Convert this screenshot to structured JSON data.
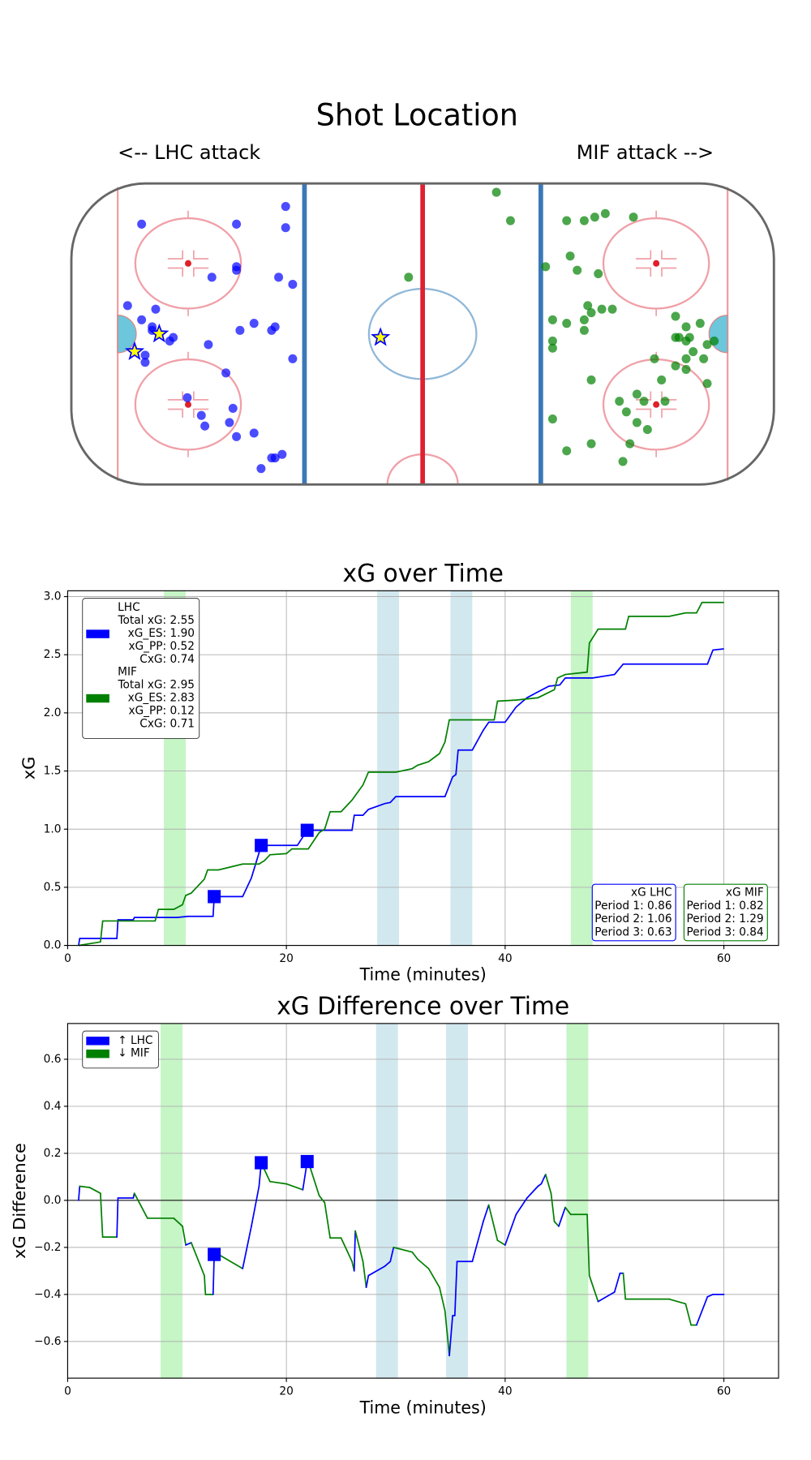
{
  "chart_data": [
    {
      "type": "scatter",
      "title": "Shot Location",
      "annotations": [
        "<-- LHC attack",
        "MIF attack -->"
      ],
      "xlim": [
        -100,
        100
      ],
      "ylim": [
        -42.5,
        42.5
      ],
      "series": [
        {
          "color": "#0000ff",
          "marker": "o",
          "x": [
            -80,
            -53,
            -39,
            -39,
            -53,
            -53,
            -60,
            -41,
            -37,
            -84,
            -76,
            -80,
            -77,
            -77,
            -71,
            -72,
            -61,
            -52,
            -48,
            -43,
            -42,
            -37,
            -79,
            -79,
            -56,
            -67,
            -63,
            -54,
            -62,
            -55,
            -48,
            -53,
            -46,
            -43,
            -42,
            -40
          ],
          "y": [
            31,
            31,
            36,
            30,
            19,
            18,
            16,
            16,
            14,
            8,
            7,
            4,
            2,
            1,
            -1,
            -2,
            -3,
            1,
            3,
            1,
            2,
            -7,
            -6,
            -8,
            -11,
            -18,
            -23,
            -21,
            -26,
            -25,
            -28,
            -29,
            -38,
            -35,
            -35,
            -34
          ]
        },
        {
          "color": "#ffff00",
          "edgecolor": "#0000ff",
          "marker": "*",
          "x": [
            -82,
            -75,
            -12
          ],
          "y": [
            -5,
            0,
            -1
          ]
        },
        {
          "color": "#008000",
          "marker": "o",
          "x": [
            21,
            25,
            -4,
            41,
            46,
            49,
            52,
            60,
            42,
            44,
            50,
            35,
            37,
            41,
            47,
            48,
            51,
            54,
            46,
            46,
            37,
            37,
            72,
            75,
            79,
            73,
            76,
            72,
            75,
            77,
            83,
            81,
            80,
            66,
            75,
            72,
            75,
            81,
            48,
            68,
            61,
            56,
            63,
            69,
            58,
            61,
            64,
            37,
            48,
            41,
            59,
            57
          ],
          "y": [
            40,
            32,
            16,
            32,
            32,
            33,
            34,
            33,
            22,
            18,
            17,
            19,
            4,
            3,
            8,
            6,
            7,
            7,
            4,
            1,
            -2,
            -4,
            5,
            2,
            3,
            -1,
            -1,
            -1,
            -2,
            -5,
            -2,
            -3,
            -7,
            -7,
            -7,
            -9,
            -10,
            -14,
            -13,
            -13,
            -17,
            -19,
            -19,
            -19,
            -22,
            -25,
            -27,
            -24,
            -31,
            -33,
            -31,
            -36
          ]
        }
      ]
    },
    {
      "type": "line",
      "title": "xG over Time",
      "xlabel": "Time (minutes)",
      "ylabel": "xG",
      "xlim": [
        0,
        65
      ],
      "ylim": [
        0,
        3.05
      ],
      "xticks": [
        0,
        20,
        40,
        60
      ],
      "yticks": [
        {
          "value": 0,
          "label": "0.0"
        },
        {
          "value": 0.5,
          "label": "0.5"
        },
        {
          "value": 1,
          "label": "1.0"
        },
        {
          "value": 1.5,
          "label": "1.5"
        },
        {
          "value": 2,
          "label": "2.0"
        },
        {
          "value": 2.5,
          "label": "2.5"
        },
        {
          "value": 3,
          "label": "3.0"
        }
      ],
      "grid": true,
      "legend": "upper left",
      "box_corner": "lower right",
      "spans": [
        {
          "x": [
            8.8,
            10.8
          ],
          "color": "#c6f5c6"
        },
        {
          "x": [
            28.3,
            30.3
          ],
          "color": "#d2e8ef"
        },
        {
          "x": [
            35,
            37
          ],
          "color": "#d2e8ef"
        },
        {
          "x": [
            46,
            48
          ],
          "color": "#c6f5c6"
        }
      ],
      "series": [
        {
          "name": "LHC",
          "color": "#0000ff",
          "legend_lines": [
            "Total xG: 2.55",
            "xG_ES: 1.90",
            "xG_PP: 0.52",
            "CxG: 0.74"
          ],
          "x": [
            1,
            1.1,
            4.5,
            4.6,
            6,
            6.1,
            10,
            11,
            13.3,
            13.4,
            16,
            16.8,
            17.7,
            21,
            21.9,
            26,
            26.2,
            27,
            27.5,
            29,
            29.5,
            30,
            34.5,
            35.2,
            35.5,
            35.7,
            37,
            38,
            38.5,
            40,
            41,
            42,
            43,
            44,
            45,
            45.5,
            48,
            50,
            50.8,
            58.5,
            59,
            60
          ],
          "values": [
            0,
            0.06,
            0.06,
            0.22,
            0.22,
            0.24,
            0.24,
            0.25,
            0.25,
            0.42,
            0.42,
            0.58,
            0.86,
            0.86,
            0.99,
            0.99,
            1.12,
            1.12,
            1.17,
            1.22,
            1.23,
            1.28,
            1.28,
            1.45,
            1.47,
            1.68,
            1.68,
            1.85,
            1.92,
            1.92,
            2.05,
            2.13,
            2.18,
            2.23,
            2.24,
            2.3,
            2.3,
            2.33,
            2.42,
            2.42,
            2.54,
            2.55
          ],
          "goals": {
            "x": [
              13.4,
              17.7,
              21.9
            ],
            "values": [
              0.42,
              0.86,
              0.99
            ]
          }
        },
        {
          "name": "MIF",
          "color": "#008000",
          "legend_lines": [
            "Total xG: 2.95",
            "xG_ES: 2.83",
            "xG_PP: 0.12",
            "CxG: 0.71"
          ],
          "x": [
            1,
            3,
            3.2,
            8,
            8.3,
            9.7,
            10.5,
            10.8,
            11.3,
            12.5,
            12.8,
            13.8,
            16,
            17.5,
            18,
            18.5,
            20,
            20.5,
            22,
            23,
            23.5,
            24,
            25,
            26,
            27,
            27.5,
            30,
            31.5,
            32,
            33,
            34,
            34.5,
            34.9,
            39,
            39.3,
            41,
            43,
            44.5,
            44.8,
            45.5,
            47.5,
            47.7,
            48.5,
            51,
            51.3,
            55,
            56.5,
            57.5,
            58,
            60
          ],
          "values": [
            0,
            0.03,
            0.21,
            0.21,
            0.31,
            0.31,
            0.35,
            0.43,
            0.45,
            0.57,
            0.65,
            0.65,
            0.7,
            0.7,
            0.73,
            0.78,
            0.79,
            0.83,
            0.83,
            0.97,
            1.0,
            1.15,
            1.15,
            1.25,
            1.38,
            1.49,
            1.49,
            1.52,
            1.55,
            1.58,
            1.65,
            1.75,
            1.94,
            1.94,
            2.1,
            2.11,
            2.13,
            2.2,
            2.3,
            2.33,
            2.35,
            2.6,
            2.72,
            2.72,
            2.83,
            2.83,
            2.86,
            2.86,
            2.95,
            2.95
          ]
        }
      ],
      "boxes": [
        {
          "color": "#0000ff",
          "lines": [
            "xG LHC",
            "Period 1: 0.86",
            "Period 2: 1.06",
            "Period 3: 0.63"
          ]
        },
        {
          "color": "#008000",
          "lines": [
            "xG MIF",
            "Period 1: 0.82",
            "Period 2: 1.29",
            "Period 3: 0.84"
          ]
        }
      ]
    },
    {
      "type": "line",
      "title": "xG Difference over Time",
      "xlabel": "Time (minutes)",
      "ylabel": "xG Difference",
      "xlim": [
        0,
        65
      ],
      "ylim": [
        -0.756,
        0.752
      ],
      "xticks": [
        0,
        20,
        40,
        60
      ],
      "yticks": [
        {
          "value": -0.6,
          "label": "−0.6"
        },
        {
          "value": -0.4,
          "label": "−0.4"
        },
        {
          "value": -0.2,
          "label": "−0.2"
        },
        {
          "value": 0,
          "label": "0.0"
        },
        {
          "value": 0.2,
          "label": "0.2"
        },
        {
          "value": 0.4,
          "label": "0.4"
        },
        {
          "value": 0.6,
          "label": "0.6"
        }
      ],
      "grid": true,
      "legend": "upper left",
      "hline": 0,
      "spans": [
        {
          "x": [
            8.5,
            10.5
          ],
          "color": "#c6f5c6"
        },
        {
          "x": [
            28.2,
            30.2
          ],
          "color": "#d2e8ef"
        },
        {
          "x": [
            34.6,
            36.6
          ],
          "color": "#d2e8ef"
        },
        {
          "x": [
            45.6,
            47.6
          ],
          "color": "#c6f5c6"
        }
      ],
      "series": [
        {
          "name": "↑ LHC",
          "color": "#0000ff"
        },
        {
          "name": "↓ MIF",
          "color": "#008000"
        }
      ],
      "x": [
        1,
        1.1,
        2,
        3,
        3.2,
        4.5,
        4.6,
        6,
        6.1,
        7.3,
        9.7,
        10.5,
        10.8,
        11.3,
        12.5,
        12.6,
        13.3,
        13.4,
        13.8,
        16,
        16.8,
        17.5,
        17.7,
        18,
        18.5,
        20,
        21.5,
        21.9,
        22,
        23,
        23.5,
        24,
        25,
        26,
        26.2,
        26.3,
        27,
        27.3,
        27.5,
        29,
        29.5,
        29.8,
        31.5,
        32,
        33,
        34,
        34.5,
        34.9,
        35.2,
        35.4,
        35.6,
        37,
        38,
        38.5,
        39.3,
        40,
        41,
        42,
        43,
        43.3,
        43.7,
        44.2,
        44.5,
        44.9,
        45.5,
        46,
        47.5,
        47.7,
        48.5,
        50,
        50.5,
        50.8,
        51,
        55,
        56.5,
        57,
        57.5,
        58.5,
        59,
        60
      ],
      "values": [
        0,
        0.06,
        0.055,
        0.03,
        -0.156,
        -0.156,
        0.01,
        0.01,
        0.03,
        -0.076,
        -0.076,
        -0.11,
        -0.19,
        -0.18,
        -0.32,
        -0.4,
        -0.4,
        -0.23,
        -0.23,
        -0.29,
        -0.11,
        0.06,
        0.16,
        0.13,
        0.08,
        0.07,
        0.045,
        0.165,
        0.165,
        0.02,
        -0.01,
        -0.16,
        -0.16,
        -0.26,
        -0.3,
        -0.13,
        -0.26,
        -0.37,
        -0.32,
        -0.28,
        -0.26,
        -0.2,
        -0.22,
        -0.25,
        -0.29,
        -0.37,
        -0.47,
        -0.66,
        -0.49,
        -0.49,
        -0.26,
        -0.26,
        -0.09,
        -0.02,
        -0.17,
        -0.19,
        -0.06,
        0.01,
        0.06,
        0.07,
        0.11,
        0.03,
        -0.09,
        -0.11,
        -0.03,
        -0.06,
        -0.06,
        -0.32,
        -0.43,
        -0.39,
        -0.31,
        -0.31,
        -0.42,
        -0.42,
        -0.44,
        -0.53,
        -0.53,
        -0.41,
        -0.4,
        -0.4
      ],
      "goals": {
        "color": "#0000ff",
        "x": [
          13.4,
          17.7,
          21.9
        ],
        "values": [
          -0.23,
          0.16,
          0.165
        ]
      }
    }
  ]
}
